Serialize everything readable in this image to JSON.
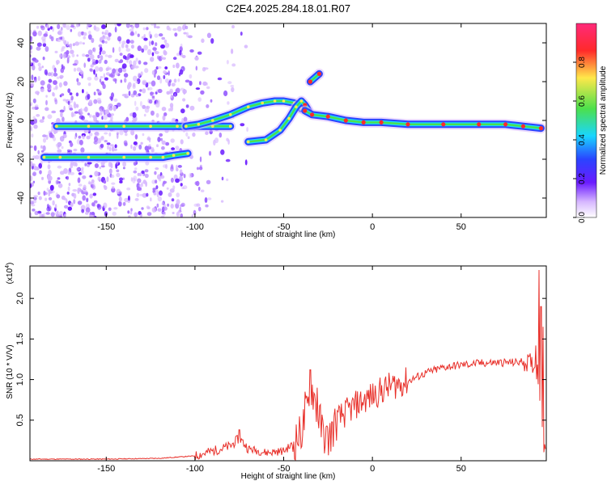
{
  "title": "C2E4.2025.284.18.01.R07",
  "colors": {
    "line": "#e8302a",
    "dot_light": "#d7b8ff",
    "dot_mid": "#a56bff",
    "dot_dark": "#6a1bff",
    "band_outer": "#2a44ff",
    "band_inner": "#19d6ff",
    "band_core_green": "#4ce04c",
    "band_core_yellow": "#ffe84a",
    "band_core_red": "#ff2a2a"
  },
  "chart_data": [
    {
      "type": "heatmap",
      "name": "spectrogram",
      "xlabel": "Height of straight line (km)",
      "ylabel": "Frequency (Hz)",
      "xlim": [
        -193,
        98
      ],
      "ylim": [
        -50,
        50
      ],
      "xticks": [
        -150,
        -100,
        -50,
        0,
        50
      ],
      "yticks": [
        -40,
        -20,
        0,
        20,
        40
      ],
      "tracks": [
        {
          "name": "zero-frequency line",
          "points": [
            [
              -178,
              -3
            ],
            [
              -160,
              -3
            ],
            [
              -150,
              -3
            ],
            [
              -140,
              -3
            ],
            [
              -125,
              -3
            ],
            [
              -110,
              -3
            ],
            [
              -100,
              -3
            ],
            [
              -90,
              -3
            ],
            [
              -80,
              -3
            ]
          ]
        },
        {
          "name": "lower line",
          "points": [
            [
              -185,
              -19
            ],
            [
              -176,
              -19
            ],
            [
              -160,
              -19
            ],
            [
              -140,
              -19
            ],
            [
              -125,
              -19
            ],
            [
              -118,
              -19
            ],
            [
              -112,
              -18
            ],
            [
              -104,
              -17
            ]
          ]
        },
        {
          "name": "upper branch",
          "points": [
            [
              -105,
              -3
            ],
            [
              -98,
              -2
            ],
            [
              -90,
              0
            ],
            [
              -80,
              3
            ],
            [
              -70,
              7
            ],
            [
              -62,
              9
            ],
            [
              -55,
              10
            ],
            [
              -50,
              10
            ],
            [
              -44,
              9
            ],
            [
              -40,
              6
            ]
          ]
        },
        {
          "name": "rising branch",
          "points": [
            [
              -70,
              -11
            ],
            [
              -60,
              -10
            ],
            [
              -52,
              -5
            ],
            [
              -47,
              1
            ],
            [
              -43,
              7
            ],
            [
              -40,
              10
            ],
            [
              -38,
              8
            ],
            [
              -36,
              5
            ]
          ]
        },
        {
          "name": "main band",
          "points": [
            [
              -38,
              5
            ],
            [
              -34,
              3
            ],
            [
              -25,
              2
            ],
            [
              -15,
              0
            ],
            [
              -5,
              -1
            ],
            [
              5,
              -1
            ],
            [
              20,
              -2
            ],
            [
              40,
              -2
            ],
            [
              60,
              -2
            ],
            [
              75,
              -2
            ],
            [
              85,
              -3
            ],
            [
              95,
              -4
            ]
          ]
        },
        {
          "name": "short feature",
          "points": [
            [
              -35,
              20
            ],
            [
              -30,
              24
            ]
          ]
        }
      ],
      "colorbar": {
        "label": "Normalized spectral amplitude",
        "range": [
          0,
          1
        ],
        "ticks": [
          "0.0",
          "0.2",
          "0.4",
          "0.6",
          "0.8"
        ]
      }
    },
    {
      "type": "line",
      "name": "snr",
      "xlabel": "Height of straight line (km)",
      "ylabel": "SNR (10 * V/V)",
      "y_multiplier_label": "(x10",
      "y_multiplier_exp": "4",
      "xlim": [
        -193,
        98
      ],
      "ylim": [
        0,
        2.4
      ],
      "xticks": [
        -150,
        -100,
        -50,
        0,
        50
      ],
      "yticks": [
        "0.5",
        "1.0",
        "1.5",
        "2.0"
      ],
      "envelope": [
        [
          -193,
          0.02
        ],
        [
          -150,
          0.02
        ],
        [
          -120,
          0.03
        ],
        [
          -100,
          0.06
        ],
        [
          -90,
          0.12
        ],
        [
          -80,
          0.18
        ],
        [
          -75,
          0.28
        ],
        [
          -70,
          0.15
        ],
        [
          -60,
          0.1
        ],
        [
          -50,
          0.12
        ],
        [
          -45,
          0.2
        ],
        [
          -40,
          0.35
        ],
        [
          -37,
          0.6
        ],
        [
          -34,
          0.9
        ],
        [
          -32,
          0.7
        ],
        [
          -28,
          0.35
        ],
        [
          -25,
          0.25
        ],
        [
          -20,
          0.5
        ],
        [
          -10,
          0.68
        ],
        [
          0,
          0.8
        ],
        [
          10,
          0.92
        ],
        [
          20,
          0.98
        ],
        [
          30,
          1.08
        ],
        [
          40,
          1.15
        ],
        [
          50,
          1.18
        ],
        [
          60,
          1.2
        ],
        [
          70,
          1.21
        ],
        [
          80,
          1.21
        ],
        [
          85,
          1.22
        ],
        [
          90,
          1.2
        ],
        [
          93,
          1.1
        ],
        [
          95,
          0.6
        ],
        [
          96,
          0.3
        ],
        [
          97,
          0.1
        ],
        [
          98,
          0.05
        ]
      ],
      "spikes": [
        [
          -75,
          0.38
        ],
        [
          -38,
          0.85
        ],
        [
          -35,
          1.12
        ],
        [
          -31,
          0.9
        ],
        [
          92,
          1.42
        ],
        [
          94,
          2.35
        ],
        [
          95,
          1.9
        ],
        [
          96,
          1.65
        ]
      ]
    }
  ]
}
